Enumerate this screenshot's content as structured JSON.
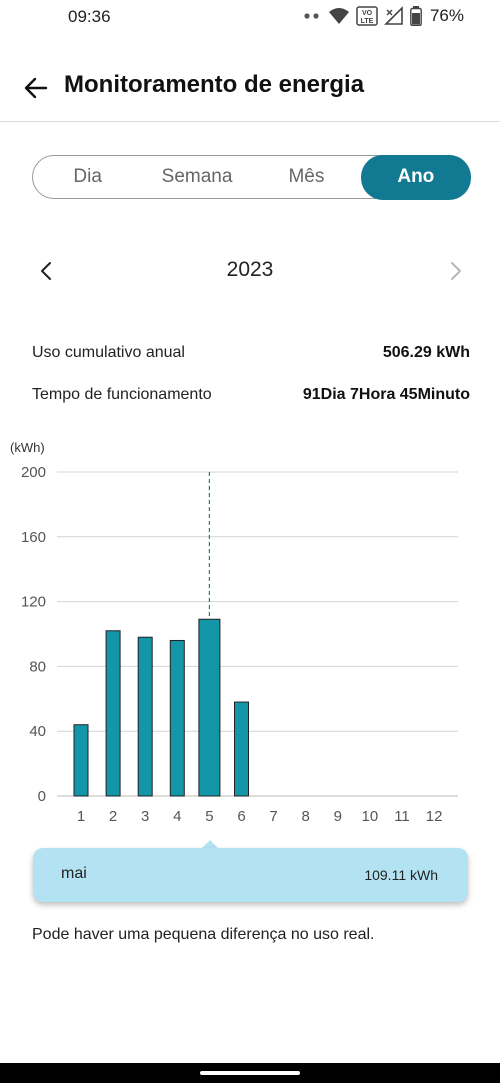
{
  "status_bar": {
    "time": "09:36",
    "battery": "76%",
    "icons": [
      "dots-icon",
      "wifi-icon",
      "volte-icon",
      "signal-icon",
      "battery-icon"
    ]
  },
  "header": {
    "title": "Monitoramento de energia",
    "back_icon": "arrow-left-icon"
  },
  "tabs": [
    {
      "label": "Dia",
      "active": false
    },
    {
      "label": "Semana",
      "active": false
    },
    {
      "label": "Mês",
      "active": false
    },
    {
      "label": "Ano",
      "active": true
    }
  ],
  "year_nav": {
    "year": "2023",
    "prev_icon": "chevron-left-icon",
    "next_icon": "chevron-right-icon"
  },
  "stats": {
    "cumulative_label": "Uso cumulativo anual",
    "cumulative_value": "506.29 kWh",
    "runtime_label": "Tempo de funcionamento",
    "runtime_value": "91Dia 7Hora 45Minuto"
  },
  "chart_data": {
    "type": "bar",
    "unit_label": "(kWh)",
    "categories": [
      "1",
      "2",
      "3",
      "4",
      "5",
      "6",
      "7",
      "8",
      "9",
      "10",
      "11",
      "12"
    ],
    "values": [
      44,
      102,
      98,
      96,
      109.11,
      58,
      0,
      0,
      0,
      0,
      0,
      0
    ],
    "yticks": [
      0,
      40,
      80,
      120,
      160,
      200
    ],
    "ylim": [
      0,
      200
    ],
    "selected_index": 4,
    "bar_color": "#1396a8",
    "grid": true
  },
  "tooltip": {
    "label": "mai",
    "value": "109.11 kWh"
  },
  "disclaimer": "Pode haver uma pequena diferença no uso real.",
  "colors": {
    "accent": "#117a92",
    "tooltip_bg": "#b3e3f3"
  }
}
